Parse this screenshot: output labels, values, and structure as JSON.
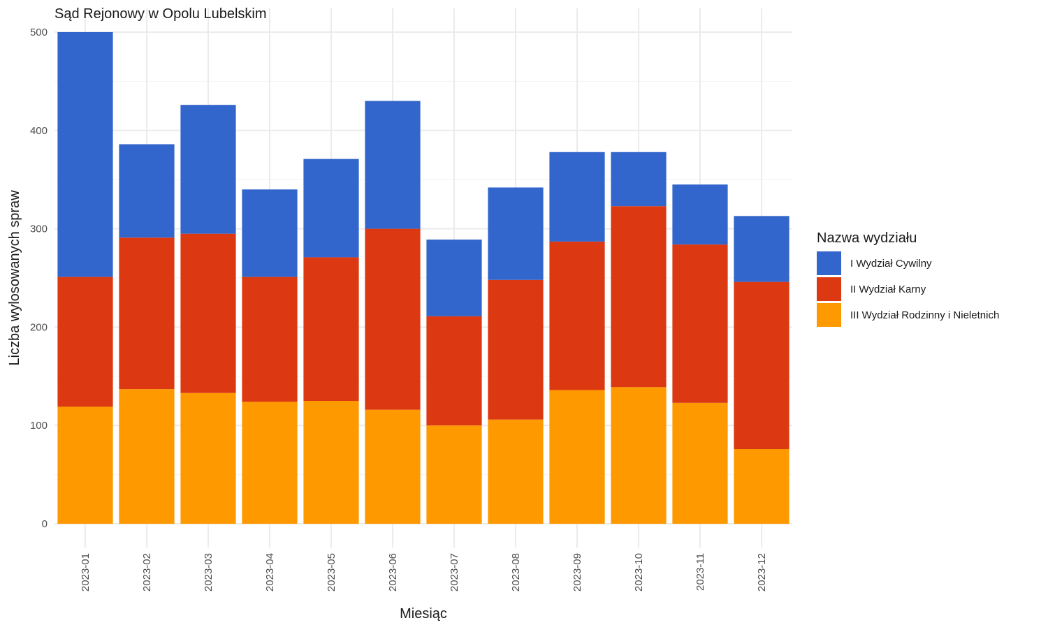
{
  "chart_data": {
    "type": "bar",
    "stacked": true,
    "title": "Sąd Rejonowy w Opolu Lubelskim",
    "xlabel": "Miesiąc",
    "ylabel": "Liczba wylosowanych spraw",
    "ylim": [
      0,
      500
    ],
    "yticks": [
      "0",
      "100",
      "200",
      "300",
      "400",
      "500"
    ],
    "grid": true,
    "legend_position": "right",
    "legend_title": "Nazwa wydziału",
    "categories": [
      "2023-01",
      "2023-02",
      "2023-03",
      "2023-04",
      "2023-05",
      "2023-06",
      "2023-07",
      "2023-08",
      "2023-09",
      "2023-10",
      "2023-11",
      "2023-12"
    ],
    "series": [
      {
        "name": "III Wydział Rodzinny i Nieletnich",
        "color": "#FF9900",
        "values": [
          119,
          137,
          133,
          124,
          125,
          116,
          100,
          106,
          136,
          139,
          123,
          76
        ]
      },
      {
        "name": "II Wydział Karny",
        "color": "#DC3912",
        "values": [
          132,
          154,
          162,
          127,
          146,
          184,
          111,
          142,
          151,
          184,
          161,
          170
        ]
      },
      {
        "name": "I Wydział Cywilny",
        "color": "#3366CC",
        "values": [
          249,
          95,
          131,
          89,
          100,
          130,
          78,
          94,
          91,
          55,
          61,
          67
        ]
      }
    ],
    "legend_order": [
      "I Wydział Cywilny",
      "II Wydział Karny",
      "III Wydział Rodzinny i Nieletnich"
    ]
  }
}
